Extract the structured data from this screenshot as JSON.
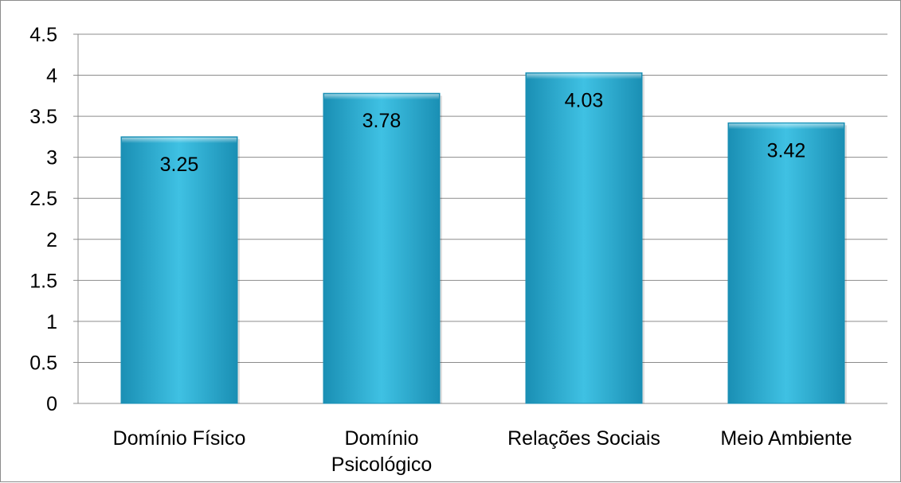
{
  "chart_data": {
    "type": "bar",
    "categories": [
      [
        "Domínio Físico"
      ],
      [
        "Domínio",
        "Psicológico"
      ],
      [
        "Relações Sociais"
      ],
      [
        "Meio Ambiente"
      ]
    ],
    "values": [
      3.25,
      3.78,
      4.03,
      3.42
    ],
    "data_labels": [
      "3.25",
      "3.78",
      "4.03",
      "3.42"
    ],
    "yticks": [
      "0",
      "0.5",
      "1",
      "1.5",
      "2",
      "2.5",
      "3",
      "3.5",
      "4",
      "4.5"
    ],
    "ylim": [
      0,
      4.5
    ],
    "grid": true,
    "bar_color": "#2bb0d6",
    "bar_color_light": "#3fc1e3",
    "bar_color_dark": "#1a8fb4"
  }
}
